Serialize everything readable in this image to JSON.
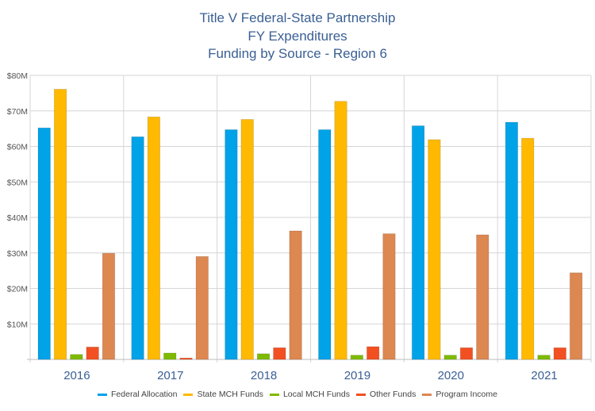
{
  "chart_data": {
    "type": "bar",
    "title": [
      "Title V Federal-State Partnership",
      "FY Expenditures",
      "Funding by Source - Region 6"
    ],
    "categories": [
      "2016",
      "2017",
      "2018",
      "2019",
      "2020",
      "2021"
    ],
    "ylim": [
      0,
      80
    ],
    "yticks": [
      "",
      "$10M",
      "$20M",
      "$30M",
      "$40M",
      "$50M",
      "$60M",
      "$70M",
      "$80M"
    ],
    "yunit": "$M",
    "grid": true,
    "legend_position": "bottom",
    "series": [
      {
        "name": "Federal Allocation",
        "color": "#00a2e8",
        "values": [
          65.2,
          62.7,
          64.7,
          64.7,
          65.8,
          66.8
        ]
      },
      {
        "name": "State MCH Funds",
        "color": "#ffb900",
        "values": [
          76.1,
          68.3,
          67.6,
          72.7,
          61.9,
          62.3
        ]
      },
      {
        "name": "Local MCH Funds",
        "color": "#7fba00",
        "values": [
          1.4,
          1.8,
          1.6,
          1.2,
          1.2,
          1.2
        ]
      },
      {
        "name": "Other Funds",
        "color": "#f25022",
        "values": [
          3.5,
          0.4,
          3.3,
          3.6,
          3.3,
          3.3
        ]
      },
      {
        "name": "Program Income",
        "color": "#dd8751",
        "values": [
          29.9,
          29.0,
          36.2,
          35.4,
          35.1,
          24.4
        ]
      }
    ]
  }
}
